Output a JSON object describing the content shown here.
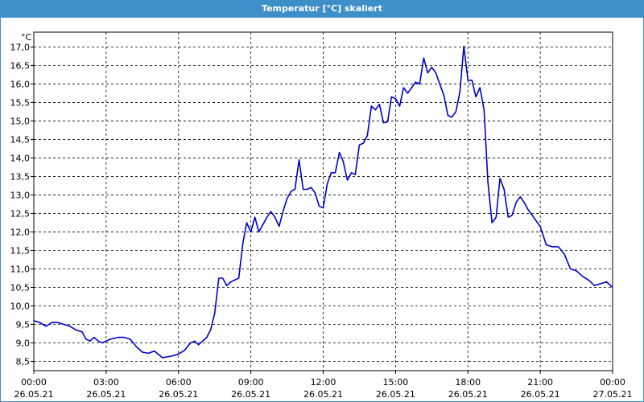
{
  "window": {
    "title": "Temperatur [°C] skaliert"
  },
  "chart_data": {
    "type": "line",
    "title": "Temperatur [°C] skaliert",
    "ylabel": "°C",
    "xlabel": "",
    "ylim": [
      8.25,
      17.4
    ],
    "xlim": [
      0,
      24
    ],
    "grid": true,
    "line_color": "#0000cc",
    "y_ticks": [
      {
        "value": 8.5,
        "label": "8,5"
      },
      {
        "value": 9.0,
        "label": "9,0"
      },
      {
        "value": 9.5,
        "label": "9,5"
      },
      {
        "value": 10.0,
        "label": "10,0"
      },
      {
        "value": 10.5,
        "label": "10,5"
      },
      {
        "value": 11.0,
        "label": "11,0"
      },
      {
        "value": 11.5,
        "label": "11,5"
      },
      {
        "value": 12.0,
        "label": "12,0"
      },
      {
        "value": 12.5,
        "label": "12,5"
      },
      {
        "value": 13.0,
        "label": "13,0"
      },
      {
        "value": 13.5,
        "label": "13,5"
      },
      {
        "value": 14.0,
        "label": "14,0"
      },
      {
        "value": 14.5,
        "label": "14,5"
      },
      {
        "value": 15.0,
        "label": "15,0"
      },
      {
        "value": 15.5,
        "label": "15,5"
      },
      {
        "value": 16.0,
        "label": "16,0"
      },
      {
        "value": 16.5,
        "label": "16,5"
      },
      {
        "value": 17.0,
        "label": "17,0"
      }
    ],
    "x_ticks": [
      {
        "hour": 0,
        "time": "00:00",
        "date": "26.05.21"
      },
      {
        "hour": 3,
        "time": "03:00",
        "date": "26.05.21"
      },
      {
        "hour": 6,
        "time": "06:00",
        "date": "26.05.21"
      },
      {
        "hour": 9,
        "time": "09:00",
        "date": "26.05.21"
      },
      {
        "hour": 12,
        "time": "12:00",
        "date": "26.05.21"
      },
      {
        "hour": 15,
        "time": "15:00",
        "date": "26.05.21"
      },
      {
        "hour": 18,
        "time": "18:00",
        "date": "26.05.21"
      },
      {
        "hour": 21,
        "time": "21:00",
        "date": "26.05.21"
      },
      {
        "hour": 24,
        "time": "00:00",
        "date": "27.05.21"
      }
    ],
    "series": [
      {
        "x": [
          0,
          0.25,
          0.5,
          0.75,
          1,
          1.25,
          1.5,
          1.75,
          2,
          2.17,
          2.33,
          2.5,
          2.67,
          2.83,
          3,
          3.17,
          3.5,
          3.75,
          4,
          4.25,
          4.5,
          4.75,
          5,
          5.33,
          5.5,
          5.75,
          6,
          6.25,
          6.5,
          6.67,
          6.83,
          7,
          7.17,
          7.33,
          7.5,
          7.67,
          7.83,
          8,
          8.17,
          8.33,
          8.5,
          8.67,
          8.83,
          9,
          9.17,
          9.33,
          9.5,
          9.67,
          9.83,
          10,
          10.17,
          10.33,
          10.5,
          10.67,
          10.83,
          11,
          11.17,
          11.33,
          11.5,
          11.67,
          11.83,
          12,
          12.17,
          12.33,
          12.5,
          12.67,
          12.83,
          13,
          13.17,
          13.33,
          13.5,
          13.67,
          13.83,
          14,
          14.17,
          14.33,
          14.5,
          14.67,
          14.83,
          15,
          15.17,
          15.33,
          15.5,
          15.67,
          15.83,
          16,
          16.17,
          16.33,
          16.5,
          16.67,
          16.83,
          17,
          17.17,
          17.33,
          17.5,
          17.67,
          17.83,
          18,
          18.17,
          18.33,
          18.5,
          18.67,
          18.83,
          19,
          19.17,
          19.33,
          19.5,
          19.67,
          19.83,
          20,
          20.17,
          20.33,
          20.5,
          20.67,
          20.83,
          21,
          21.25,
          21.5,
          21.75,
          22,
          22.25,
          22.5,
          22.75,
          23,
          23.25,
          23.5,
          23.75,
          24
        ],
        "y": [
          9.6,
          9.55,
          9.45,
          9.55,
          9.55,
          9.5,
          9.45,
          9.35,
          9.3,
          9.1,
          9.05,
          9.15,
          9.05,
          9.0,
          9.05,
          9.1,
          9.15,
          9.15,
          9.1,
          8.9,
          8.75,
          8.72,
          8.78,
          8.6,
          8.62,
          8.65,
          8.7,
          8.8,
          9.0,
          9.05,
          8.95,
          9.05,
          9.15,
          9.35,
          9.8,
          10.75,
          10.75,
          10.55,
          10.65,
          10.7,
          10.75,
          11.7,
          12.25,
          12.0,
          12.4,
          12.0,
          12.2,
          12.4,
          12.55,
          12.4,
          12.15,
          12.55,
          12.9,
          13.1,
          13.15,
          13.95,
          13.15,
          13.15,
          13.2,
          13.05,
          12.7,
          12.65,
          13.3,
          13.6,
          13.6,
          14.15,
          13.9,
          13.4,
          13.6,
          13.55,
          14.35,
          14.4,
          14.6,
          15.4,
          15.3,
          15.45,
          14.95,
          14.98,
          15.65,
          15.6,
          15.4,
          15.9,
          15.75,
          15.9,
          16.05,
          16.0,
          16.7,
          16.3,
          16.45,
          16.3,
          16.0,
          15.7,
          15.15,
          15.1,
          15.25,
          15.8,
          17.02,
          16.1,
          16.1,
          15.65,
          15.9,
          15.3,
          13.35,
          12.25,
          12.4,
          13.45,
          13.15,
          12.4,
          12.45,
          12.8,
          12.95,
          12.8,
          12.6,
          12.45,
          12.3,
          12.15,
          11.65,
          11.6,
          11.6,
          11.4,
          11.0,
          10.95,
          10.8,
          10.7,
          10.55,
          10.6,
          10.65,
          10.5
        ]
      }
    ]
  }
}
